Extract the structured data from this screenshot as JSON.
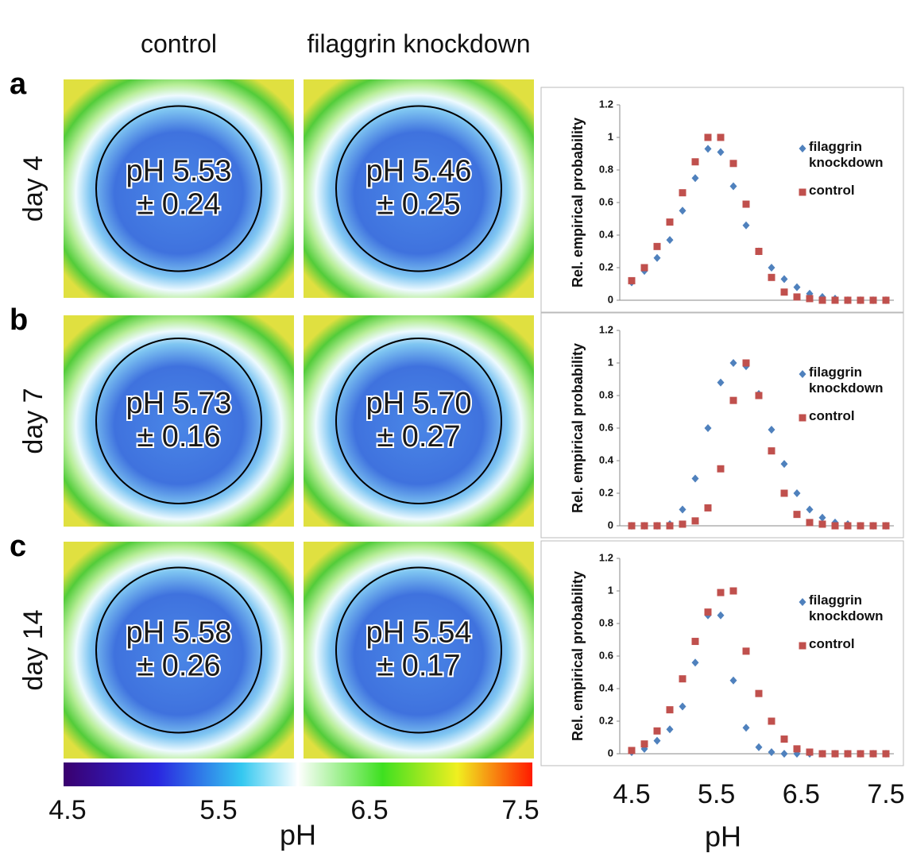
{
  "columns": [
    "control",
    "filaggrin knockdown"
  ],
  "panels": [
    {
      "letter": "a",
      "day": "day 4",
      "images": [
        {
          "ph": "pH 5.53",
          "sd": "± 0.24"
        },
        {
          "ph": "pH 5.46",
          "sd": "± 0.25"
        }
      ]
    },
    {
      "letter": "b",
      "day": "day 7",
      "images": [
        {
          "ph": "pH 5.73",
          "sd": "± 0.16"
        },
        {
          "ph": "pH 5.70",
          "sd": "± 0.27"
        }
      ]
    },
    {
      "letter": "c",
      "day": "day 14",
      "images": [
        {
          "ph": "pH 5.58",
          "sd": "± 0.26"
        },
        {
          "ph": "pH 5.54",
          "sd": "± 0.17"
        }
      ]
    }
  ],
  "colorbar": {
    "ticks": [
      4.5,
      5.5,
      6.5,
      7.5
    ],
    "label": "pH"
  },
  "chart_data": [
    {
      "type": "scatter",
      "ylabel": "Rel. empirical probability",
      "x": [
        4.5,
        4.65,
        4.8,
        4.95,
        5.1,
        5.25,
        5.4,
        5.55,
        5.7,
        5.85,
        6.0,
        6.15,
        6.3,
        6.45,
        6.6,
        6.75,
        6.9,
        7.05,
        7.2,
        7.35,
        7.5
      ],
      "xlim": [
        4.5,
        7.5
      ],
      "ylim": [
        0,
        1.2
      ],
      "yticks": [
        0,
        0.2,
        0.4,
        0.6,
        0.8,
        1,
        1.2
      ],
      "series": [
        {
          "name": "filaggrin knockdown",
          "color": "#4f81bd",
          "marker": "diamond",
          "values": [
            0.11,
            0.18,
            0.26,
            0.37,
            0.55,
            0.75,
            0.93,
            0.91,
            0.7,
            0.46,
            0.3,
            0.2,
            0.13,
            0.08,
            0.04,
            0.02,
            0.01,
            0,
            0,
            0,
            0
          ]
        },
        {
          "name": "control",
          "color": "#c0504d",
          "marker": "square",
          "values": [
            0.12,
            0.2,
            0.33,
            0.48,
            0.66,
            0.85,
            1,
            1,
            0.84,
            0.59,
            0.3,
            0.14,
            0.05,
            0.02,
            0.01,
            0,
            0,
            0,
            0,
            0,
            0
          ]
        }
      ]
    },
    {
      "type": "scatter",
      "ylabel": "Rel. empirical probability",
      "x": [
        4.5,
        4.65,
        4.8,
        4.95,
        5.1,
        5.25,
        5.4,
        5.55,
        5.7,
        5.85,
        6.0,
        6.15,
        6.3,
        6.45,
        6.6,
        6.75,
        6.9,
        7.05,
        7.2,
        7.35,
        7.5
      ],
      "xlim": [
        4.5,
        7.5
      ],
      "ylim": [
        0,
        1.2
      ],
      "yticks": [
        0,
        0.2,
        0.4,
        0.6,
        0.8,
        1,
        1.2
      ],
      "series": [
        {
          "name": "filaggrin knockdown",
          "color": "#4f81bd",
          "marker": "diamond",
          "values": [
            0,
            0,
            0,
            0.01,
            0.1,
            0.29,
            0.6,
            0.88,
            1,
            0.98,
            0.81,
            0.59,
            0.38,
            0.2,
            0.1,
            0.05,
            0.02,
            0.01,
            0,
            0,
            0
          ]
        },
        {
          "name": "control",
          "color": "#c0504d",
          "marker": "square",
          "values": [
            0,
            0,
            0,
            0,
            0.01,
            0.03,
            0.11,
            0.35,
            0.77,
            1,
            0.8,
            0.46,
            0.2,
            0.07,
            0.02,
            0.01,
            0,
            0,
            0,
            0,
            0
          ]
        }
      ]
    },
    {
      "type": "scatter",
      "ylabel": "Rel. empirical probability",
      "x": [
        4.5,
        4.65,
        4.8,
        4.95,
        5.1,
        5.25,
        5.4,
        5.55,
        5.7,
        5.85,
        6.0,
        6.15,
        6.3,
        6.45,
        6.6,
        6.75,
        6.9,
        7.05,
        7.2,
        7.35,
        7.5
      ],
      "xlim": [
        4.5,
        7.5
      ],
      "ylim": [
        0,
        1.2
      ],
      "yticks": [
        0,
        0.2,
        0.4,
        0.6,
        0.8,
        1,
        1.2
      ],
      "xticks": [
        4.5,
        5.5,
        6.5,
        7.5
      ],
      "xlabel": "pH",
      "series": [
        {
          "name": "filaggrin knockdown",
          "color": "#4f81bd",
          "marker": "diamond",
          "values": [
            0.01,
            0.03,
            0.08,
            0.15,
            0.29,
            0.56,
            0.85,
            0.85,
            0.45,
            0.16,
            0.04,
            0.01,
            0,
            0,
            0,
            0,
            0,
            0,
            0,
            0,
            0
          ]
        },
        {
          "name": "control",
          "color": "#c0504d",
          "marker": "square",
          "values": [
            0.02,
            0.06,
            0.14,
            0.27,
            0.46,
            0.69,
            0.87,
            0.99,
            1,
            0.63,
            0.37,
            0.2,
            0.09,
            0.03,
            0.01,
            0,
            0,
            0,
            0,
            0,
            0
          ]
        }
      ]
    }
  ]
}
